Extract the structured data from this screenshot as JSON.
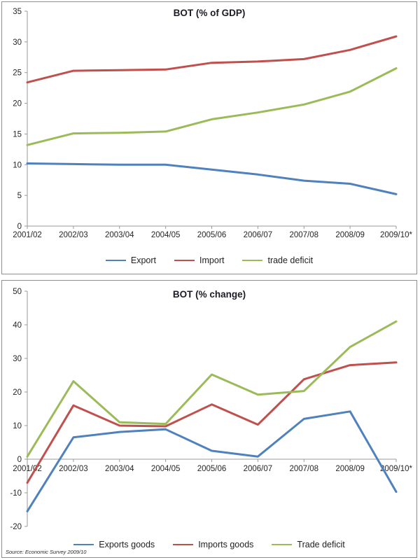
{
  "source_note": "Source: Economic Survey 2009/10",
  "colors": {
    "export_blue": "#4f81bd",
    "import_red": "#c0504d",
    "deficit_green": "#9bbb59",
    "axis_line": "#9a9a9a",
    "tick_text": "#262626",
    "title_text": "#1c1c24",
    "panel_border": "#8e8e8e"
  },
  "chart_data": [
    {
      "type": "line",
      "title": "BOT (% of GDP)",
      "categories": [
        "2001/02",
        "2002/03",
        "2003/04",
        "2004/05",
        "2005/06",
        "2006/07",
        "2007/08",
        "2008/09",
        "2009/10*"
      ],
      "series": [
        {
          "name": "Export",
          "color": "#4f81bd",
          "values": [
            10.2,
            10.1,
            10.0,
            10.0,
            9.2,
            8.4,
            7.4,
            6.9,
            5.2
          ]
        },
        {
          "name": "Import",
          "color": "#c0504d",
          "values": [
            23.4,
            25.3,
            25.4,
            25.5,
            26.6,
            26.8,
            27.2,
            28.7,
            30.9
          ]
        },
        {
          "name": "trade deficit",
          "color": "#9bbb59",
          "values": [
            13.2,
            15.1,
            15.2,
            15.4,
            17.4,
            18.5,
            19.8,
            21.9,
            25.7
          ]
        }
      ],
      "ylim": [
        0,
        35
      ],
      "ytick_step": 5,
      "grid": false,
      "legend_position": "bottom"
    },
    {
      "type": "line",
      "title": "BOT (% change)",
      "categories": [
        "2001/02",
        "2002/03",
        "2003/04",
        "2004/05",
        "2005/06",
        "2006/07",
        "2007/08",
        "2008/09",
        "2009/10*"
      ],
      "series": [
        {
          "name": "Exports goods",
          "color": "#4f81bd",
          "values": [
            -15.5,
            6.5,
            8.1,
            8.9,
            2.5,
            0.8,
            12.0,
            14.2,
            -9.7
          ]
        },
        {
          "name": "Imports goods",
          "color": "#c0504d",
          "values": [
            -7.0,
            16.0,
            10.0,
            9.8,
            16.3,
            10.3,
            23.8,
            28.0,
            28.8
          ]
        },
        {
          "name": "Trade deficit",
          "color": "#9bbb59",
          "values": [
            0.8,
            23.2,
            11.0,
            10.5,
            25.2,
            19.2,
            20.3,
            33.4,
            41.0
          ]
        }
      ],
      "ylim": [
        -20,
        50
      ],
      "ytick_step": 10,
      "grid": false,
      "legend_position": "bottom"
    }
  ]
}
